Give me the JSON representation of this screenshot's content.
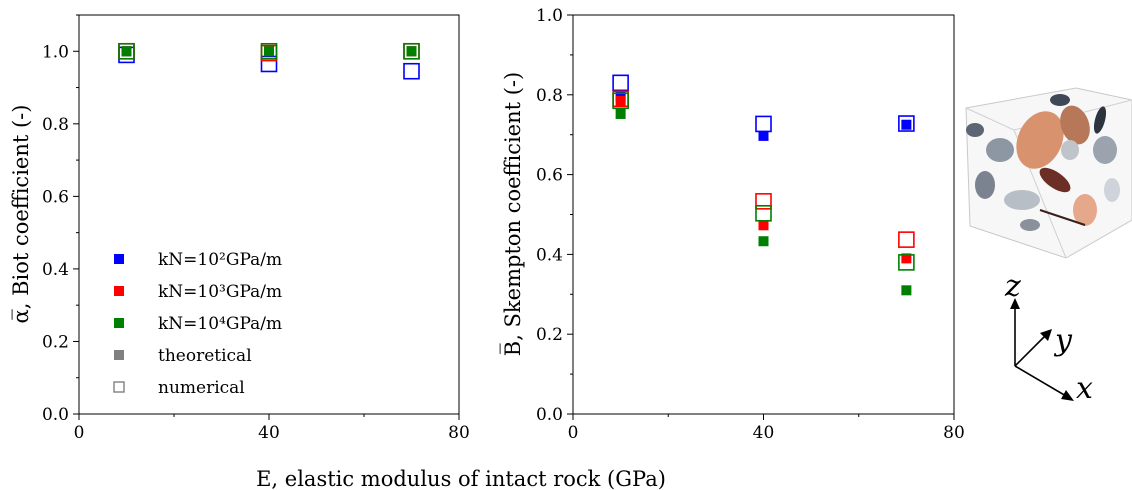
{
  "figure": {
    "shared_xlabel": "E, elastic modulus of intact rock (GPa)",
    "colors": {
      "k1e2": "#0000ff",
      "k1e3": "#ff0000",
      "k1e4": "#008000",
      "marker_legend": "#808080"
    }
  },
  "chart_data": [
    {
      "type": "scatter",
      "ylabel": "α̅, Biot coefficient (-)",
      "xlim": [
        0,
        80
      ],
      "ylim": [
        0.0,
        1.1
      ],
      "xticks": [
        "0",
        "40",
        "80"
      ],
      "yticks": [
        "0.0",
        "0.2",
        "0.4",
        "0.6",
        "0.8",
        "1.0"
      ],
      "legend_placement": "lower-left",
      "legend": [
        {
          "text": "kN=10²GPa/m",
          "marker": "filled-square",
          "color": "#0000ff"
        },
        {
          "text": "kN=10³GPa/m",
          "marker": "filled-square",
          "color": "#ff0000"
        },
        {
          "text": "kN=10⁴GPa/m",
          "marker": "filled-square",
          "color": "#008000"
        },
        {
          "text": "theoretical",
          "marker": "filled-square",
          "color": "#808080"
        },
        {
          "text": "numerical",
          "marker": "open-square",
          "color": "#808080"
        }
      ],
      "series": [
        {
          "name": "kN=10²GPa/m theoretical",
          "color": "#0000ff",
          "marker": "filled",
          "x": [
            10,
            40,
            70
          ],
          "y": [
            1.0,
            1.0,
            1.0
          ]
        },
        {
          "name": "kN=10²GPa/m numerical",
          "color": "#0000ff",
          "marker": "open",
          "x": [
            10,
            40,
            70
          ],
          "y": [
            0.99,
            0.965,
            0.945
          ]
        },
        {
          "name": "kN=10³GPa/m theoretical",
          "color": "#ff0000",
          "marker": "filled",
          "x": [
            10,
            40,
            70
          ],
          "y": [
            1.0,
            1.0,
            1.0
          ]
        },
        {
          "name": "kN=10³GPa/m numerical",
          "color": "#ff0000",
          "marker": "open",
          "x": [
            10,
            40,
            70
          ],
          "y": [
            1.0,
            0.995,
            1.0
          ]
        },
        {
          "name": "kN=10⁴GPa/m theoretical",
          "color": "#008000",
          "marker": "filled",
          "x": [
            10,
            40,
            70
          ],
          "y": [
            1.0,
            1.0,
            1.0
          ]
        },
        {
          "name": "kN=10⁴GPa/m numerical",
          "color": "#008000",
          "marker": "open",
          "x": [
            10,
            40,
            70
          ],
          "y": [
            1.0,
            1.0,
            1.0
          ]
        }
      ]
    },
    {
      "type": "scatter",
      "ylabel": "B̅, Skempton coefficient (-)",
      "xlim": [
        0,
        80
      ],
      "ylim": [
        0.0,
        1.0
      ],
      "xticks": [
        "0",
        "40",
        "80"
      ],
      "yticks": [
        "0.0",
        "0.2",
        "0.4",
        "0.6",
        "0.8",
        "1.0"
      ],
      "series": [
        {
          "name": "kN=10²GPa/m theoretical",
          "color": "#0000ff",
          "marker": "filled",
          "x": [
            10,
            40,
            70
          ],
          "y": [
            0.795,
            0.697,
            0.725
          ]
        },
        {
          "name": "kN=10²GPa/m numerical",
          "color": "#0000ff",
          "marker": "open",
          "x": [
            10,
            40,
            70
          ],
          "y": [
            0.83,
            0.727,
            0.728
          ]
        },
        {
          "name": "kN=10³GPa/m theoretical",
          "color": "#ff0000",
          "marker": "filled",
          "x": [
            10,
            40,
            70
          ],
          "y": [
            0.785,
            0.473,
            0.39
          ]
        },
        {
          "name": "kN=10³GPa/m numerical",
          "color": "#ff0000",
          "marker": "open",
          "x": [
            10,
            40,
            70
          ],
          "y": [
            0.79,
            0.533,
            0.437
          ]
        },
        {
          "name": "kN=10⁴GPa/m theoretical",
          "color": "#008000",
          "marker": "filled",
          "x": [
            10,
            40,
            70
          ],
          "y": [
            0.752,
            0.433,
            0.31
          ]
        },
        {
          "name": "kN=10⁴GPa/m numerical",
          "color": "#008000",
          "marker": "open",
          "x": [
            10,
            40,
            70
          ],
          "y": [
            0.785,
            0.503,
            0.38
          ]
        }
      ]
    }
  ],
  "inset": {
    "description_icon": "fracture-network-cube",
    "axes_labels": {
      "x": "x",
      "y": "y",
      "z": "z"
    }
  }
}
